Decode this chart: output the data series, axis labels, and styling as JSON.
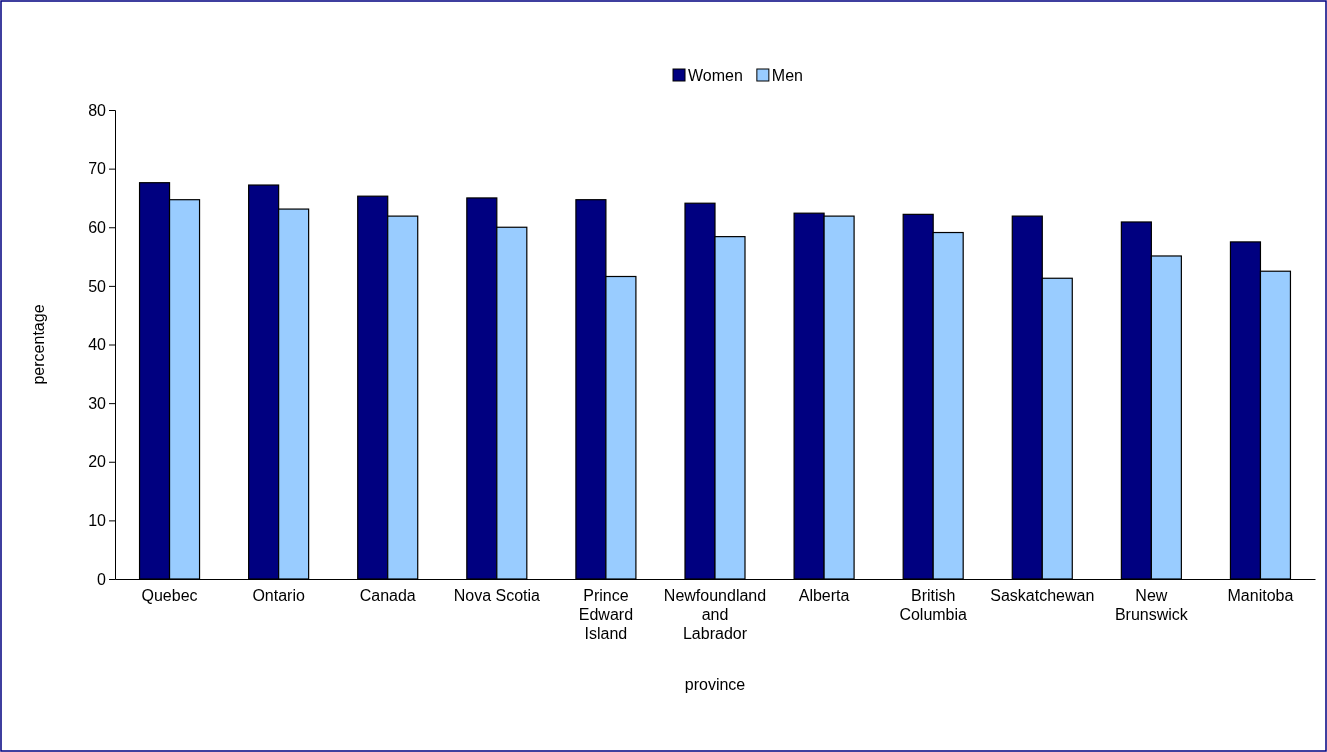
{
  "chart_data": {
    "type": "bar",
    "xlabel": "province",
    "ylabel": "percentage",
    "categories": [
      "Quebec",
      "Ontario",
      "Canada",
      "Nova Scotia",
      "Prince Edward Island",
      "Newfoundland and Labrador",
      "Alberta",
      "British Columbia",
      "Saskatchewan",
      "New Brunswick",
      "Manitoba"
    ],
    "series": [
      {
        "name": "Women",
        "color": "#000080",
        "values": [
          67.6,
          67.2,
          65.3,
          65.0,
          64.7,
          64.1,
          62.4,
          62.2,
          61.9,
          60.9,
          57.5
        ]
      },
      {
        "name": "Men",
        "color": "#99ccff",
        "values": [
          64.7,
          63.1,
          61.9,
          60.0,
          51.6,
          58.4,
          61.9,
          59.1,
          51.3,
          55.1,
          52.5
        ]
      }
    ],
    "ylim": [
      0,
      80
    ],
    "yticks": [
      0,
      10,
      20,
      30,
      40,
      50,
      60,
      70,
      80
    ],
    "grid": false,
    "legend": "top"
  }
}
